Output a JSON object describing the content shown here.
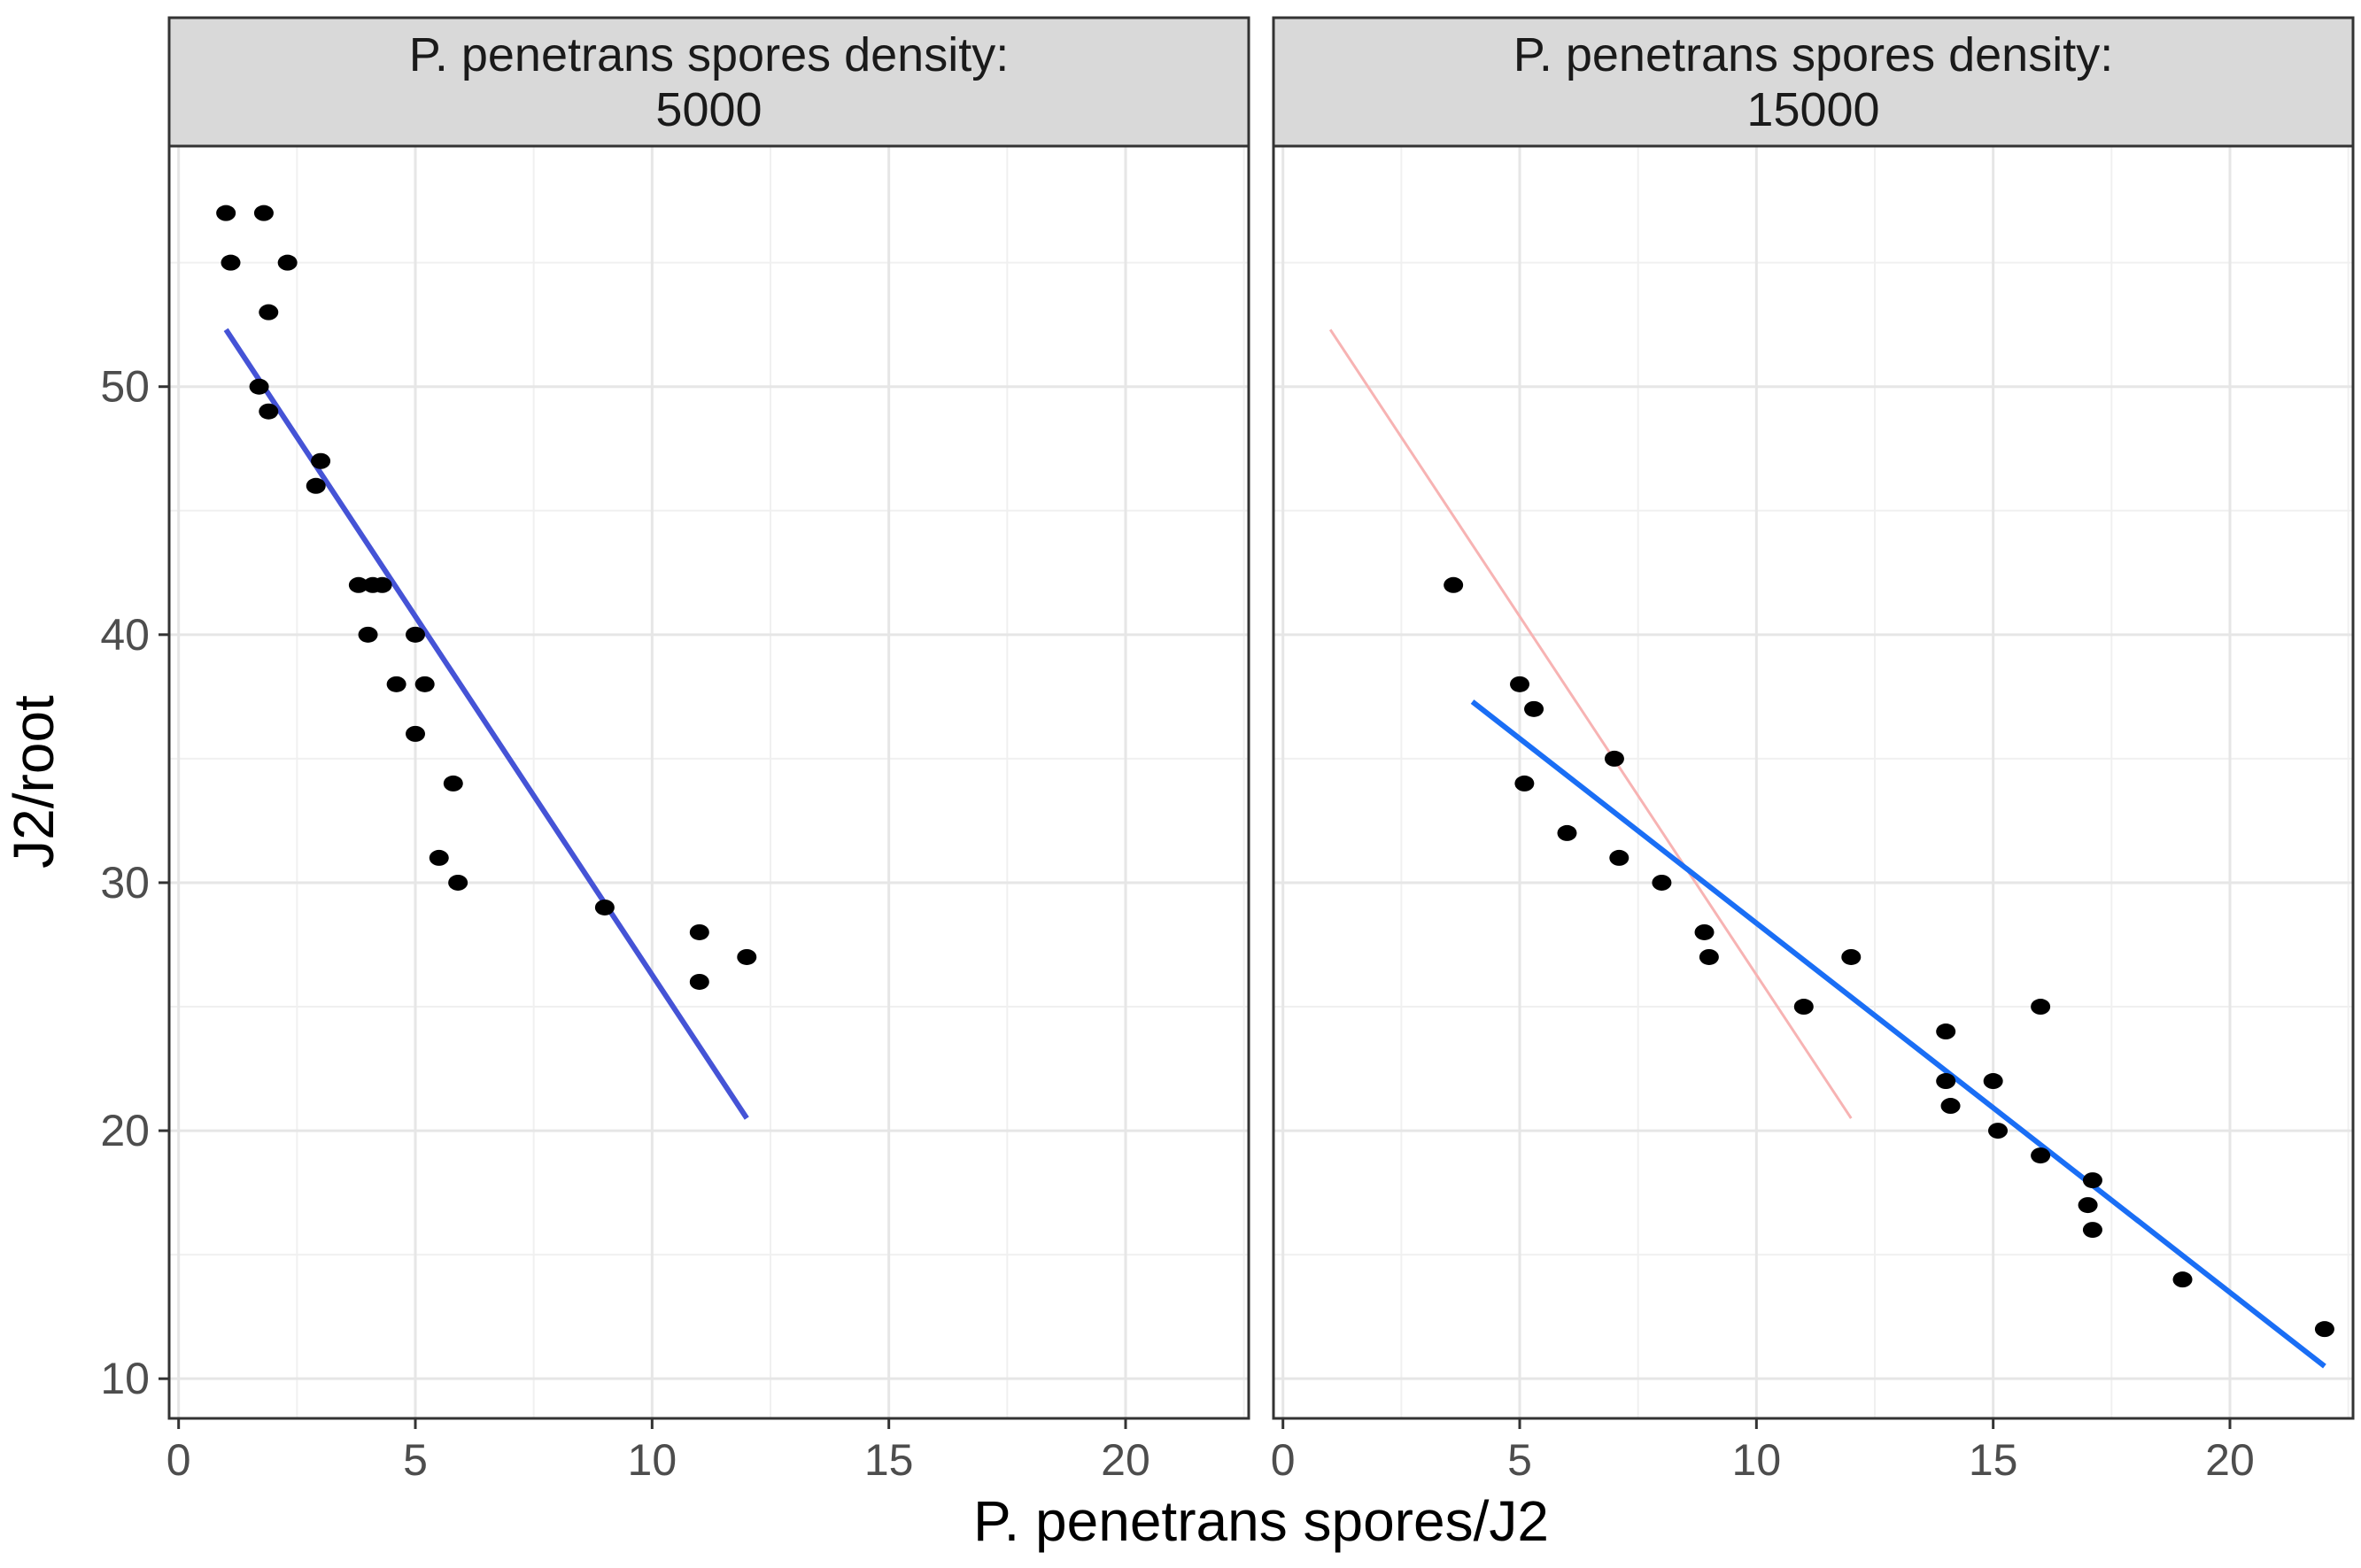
{
  "chart_data": {
    "type": "scatter",
    "xlabel": "P. penetrans spores/J2",
    "ylabel": "J2/root",
    "xlim": [
      -0.2,
      22.6
    ],
    "ylim": [
      8.4,
      59.7
    ],
    "x_ticks": [
      0,
      5,
      10,
      15,
      20
    ],
    "y_ticks": [
      10,
      20,
      30,
      40,
      50
    ],
    "grid": true,
    "panels": [
      {
        "strip": [
          "P. penetrans spores density:",
          "5000"
        ],
        "points": [
          {
            "x": 1.0,
            "y": 57
          },
          {
            "x": 1.8,
            "y": 57
          },
          {
            "x": 1.1,
            "y": 55
          },
          {
            "x": 2.3,
            "y": 55
          },
          {
            "x": 1.9,
            "y": 53
          },
          {
            "x": 1.7,
            "y": 50
          },
          {
            "x": 1.9,
            "y": 49
          },
          {
            "x": 3.0,
            "y": 47
          },
          {
            "x": 2.9,
            "y": 46
          },
          {
            "x": 3.8,
            "y": 42
          },
          {
            "x": 4.1,
            "y": 42
          },
          {
            "x": 4.3,
            "y": 42
          },
          {
            "x": 4.0,
            "y": 40
          },
          {
            "x": 5.0,
            "y": 40
          },
          {
            "x": 4.6,
            "y": 38
          },
          {
            "x": 5.2,
            "y": 38
          },
          {
            "x": 5.0,
            "y": 36
          },
          {
            "x": 5.8,
            "y": 34
          },
          {
            "x": 5.5,
            "y": 31
          },
          {
            "x": 5.9,
            "y": 30
          },
          {
            "x": 9.0,
            "y": 29
          },
          {
            "x": 11.0,
            "y": 28
          },
          {
            "x": 12.0,
            "y": 27
          },
          {
            "x": 11.0,
            "y": 26
          }
        ],
        "fit_lines": [
          {
            "x": [
              1.0,
              12.0
            ],
            "y": [
              52.3,
              20.5
            ],
            "color": "#4553d6",
            "width": 6
          }
        ]
      },
      {
        "strip": [
          "P. penetrans spores density:",
          "15000"
        ],
        "points": [
          {
            "x": 3.6,
            "y": 42
          },
          {
            "x": 5.0,
            "y": 38
          },
          {
            "x": 5.3,
            "y": 37
          },
          {
            "x": 5.1,
            "y": 34
          },
          {
            "x": 7.0,
            "y": 35
          },
          {
            "x": 6.0,
            "y": 32
          },
          {
            "x": 7.1,
            "y": 31
          },
          {
            "x": 8.0,
            "y": 30
          },
          {
            "x": 8.9,
            "y": 28
          },
          {
            "x": 9.0,
            "y": 27
          },
          {
            "x": 12.0,
            "y": 27
          },
          {
            "x": 11.0,
            "y": 25
          },
          {
            "x": 16.0,
            "y": 25
          },
          {
            "x": 14.0,
            "y": 24
          },
          {
            "x": 14.0,
            "y": 22
          },
          {
            "x": 15.0,
            "y": 22
          },
          {
            "x": 14.1,
            "y": 21
          },
          {
            "x": 15.1,
            "y": 20
          },
          {
            "x": 16.0,
            "y": 19
          },
          {
            "x": 17.1,
            "y": 18
          },
          {
            "x": 17.0,
            "y": 17
          },
          {
            "x": 17.1,
            "y": 16
          },
          {
            "x": 19.0,
            "y": 14
          },
          {
            "x": 22.0,
            "y": 12
          }
        ],
        "fit_lines": [
          {
            "x": [
              1.0,
              12.0
            ],
            "y": [
              52.3,
              20.5
            ],
            "color": "#f7b3b3",
            "width": 3
          },
          {
            "x": [
              4.0,
              22.0
            ],
            "y": [
              37.3,
              10.5
            ],
            "color": "#1a6ef5",
            "width": 6
          }
        ]
      }
    ]
  }
}
